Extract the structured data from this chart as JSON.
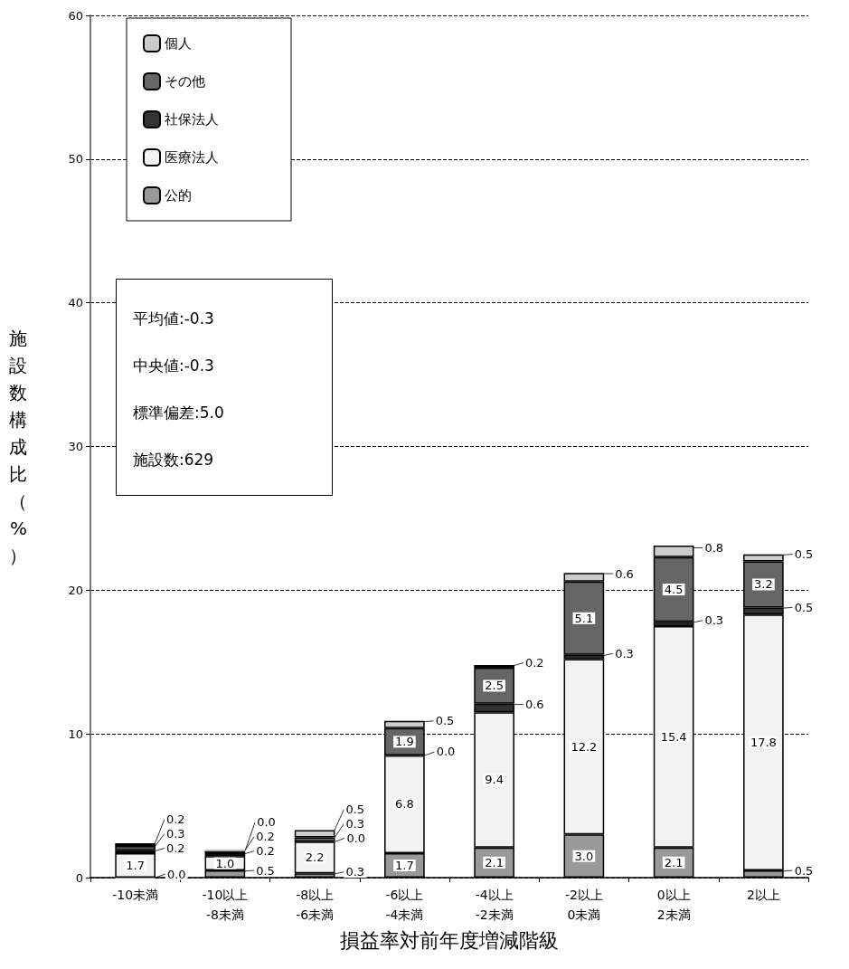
{
  "chart_data": {
    "type": "bar",
    "stacked": true,
    "xlabel": "損益率対前年度増減階級",
    "ylabel": "施設数構成比（%）",
    "categories": [
      "-10未満",
      "-10以上\n-8未満",
      "-8以上\n-6未満",
      "-6以上\n-4未満",
      "-4以上\n-2未満",
      "-2以上\n0未満",
      "0以上\n2未満",
      "2以上"
    ],
    "series": [
      {
        "name": "公的",
        "color": "#999999",
        "values": [
          0.0,
          0.5,
          0.3,
          1.7,
          2.1,
          3.0,
          2.1,
          0.5
        ],
        "value_labels": [
          "0.0",
          "0.5",
          "0.3",
          "1.7",
          "2.1",
          "3.0",
          "2.1",
          "0.5"
        ]
      },
      {
        "name": "医療法人",
        "color": "#f2f2f2",
        "values": [
          1.7,
          1.0,
          2.2,
          6.8,
          9.4,
          12.2,
          15.4,
          17.8
        ],
        "value_labels": [
          "1.7",
          "1.0",
          "2.2",
          "6.8",
          "9.4",
          "12.2",
          "15.4",
          "17.8"
        ]
      },
      {
        "name": "社保法人",
        "color": "#333333",
        "values": [
          0.2,
          0.2,
          0.0,
          0.0,
          0.6,
          0.3,
          0.3,
          0.5
        ],
        "value_labels": [
          "0.2",
          "0.2",
          "0.0",
          "0.0",
          "0.6",
          "0.3",
          "0.3",
          "0.5"
        ]
      },
      {
        "name": "その他",
        "color": "#666666",
        "values": [
          0.3,
          0.2,
          0.3,
          1.9,
          2.5,
          5.1,
          4.5,
          3.2
        ],
        "value_labels": [
          "0.3",
          "0.2",
          "0.3",
          "1.9",
          "2.5",
          "5.1",
          "4.5",
          "3.2"
        ]
      },
      {
        "name": "個人",
        "color": "#cccccc",
        "values": [
          0.2,
          0.0,
          0.5,
          0.5,
          0.2,
          0.6,
          0.8,
          0.5
        ],
        "value_labels": [
          "0.2",
          "0.0",
          "0.5",
          "0.5",
          "0.2",
          "0.6",
          "0.8",
          "0.5"
        ]
      }
    ],
    "ylim": [
      0,
      60
    ],
    "yticks": [
      0,
      10,
      20,
      30,
      40,
      50,
      60
    ],
    "grid": "y",
    "legend": "top left",
    "annotations": [
      "平均値:-0.3",
      "中央値:-0.3",
      "標準偏差:5.0",
      "施設数:629"
    ]
  }
}
